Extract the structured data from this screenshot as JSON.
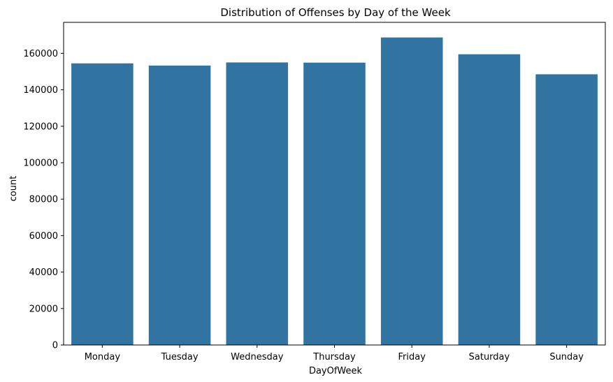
{
  "chart_data": {
    "type": "bar",
    "title": "Distribution of Offenses by Day of the Week",
    "xlabel": "DayOfWeek",
    "ylabel": "count",
    "categories": [
      "Monday",
      "Tuesday",
      "Wednesday",
      "Thursday",
      "Friday",
      "Saturday",
      "Sunday"
    ],
    "values": [
      154500,
      153300,
      155000,
      154900,
      168700,
      159500,
      148500
    ],
    "ylim": [
      0,
      177000
    ],
    "yticks": [
      0,
      20000,
      40000,
      60000,
      80000,
      100000,
      120000,
      140000,
      160000
    ],
    "ytick_labels": [
      "0",
      "20000",
      "40000",
      "60000",
      "80000",
      "100000",
      "120000",
      "140000",
      "160000"
    ],
    "grid": false,
    "bar_color": "#3274a1"
  }
}
